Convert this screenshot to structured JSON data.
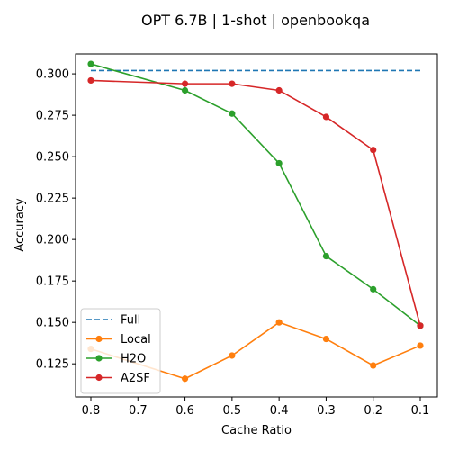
{
  "chart_data": {
    "type": "line",
    "title": "OPT 6.7B | 1-shot | openbookqa",
    "xlabel": "Cache Ratio",
    "ylabel": "Accuracy",
    "x": [
      0.8,
      0.7,
      0.6,
      0.5,
      0.4,
      0.3,
      0.2,
      0.1
    ],
    "x_ticks": [
      "0.8",
      "0.7",
      "0.6",
      "0.5",
      "0.4",
      "0.3",
      "0.2",
      "0.1"
    ],
    "x_reversed": true,
    "xlim": [
      0.8,
      0.1
    ],
    "y_ticks": [
      "0.125",
      "0.150",
      "0.175",
      "0.200",
      "0.225",
      "0.250",
      "0.275",
      "0.300"
    ],
    "ylim": [
      0.105,
      0.312
    ],
    "grid": false,
    "legend_position": "lower-left",
    "series": [
      {
        "name": "Full",
        "color": "#1f77b4",
        "style": "dashed",
        "markers": false,
        "x": [
          0.8,
          0.1
        ],
        "values": [
          0.302,
          0.302
        ]
      },
      {
        "name": "Local",
        "color": "#ff7f0e",
        "style": "solid",
        "markers": true,
        "x": [
          0.8,
          0.6,
          0.5,
          0.4,
          0.3,
          0.2,
          0.1
        ],
        "values": [
          0.134,
          0.116,
          0.13,
          0.15,
          0.14,
          0.124,
          0.136
        ]
      },
      {
        "name": "H2O",
        "color": "#2ca02c",
        "style": "solid",
        "markers": true,
        "x": [
          0.8,
          0.6,
          0.5,
          0.4,
          0.3,
          0.2,
          0.1
        ],
        "values": [
          0.306,
          0.29,
          0.276,
          0.246,
          0.19,
          0.17,
          0.148
        ]
      },
      {
        "name": "A2SF",
        "color": "#d62728",
        "style": "solid",
        "markers": true,
        "x": [
          0.8,
          0.6,
          0.5,
          0.4,
          0.3,
          0.2,
          0.1
        ],
        "values": [
          0.296,
          0.294,
          0.294,
          0.29,
          0.274,
          0.254,
          0.148
        ]
      }
    ]
  }
}
